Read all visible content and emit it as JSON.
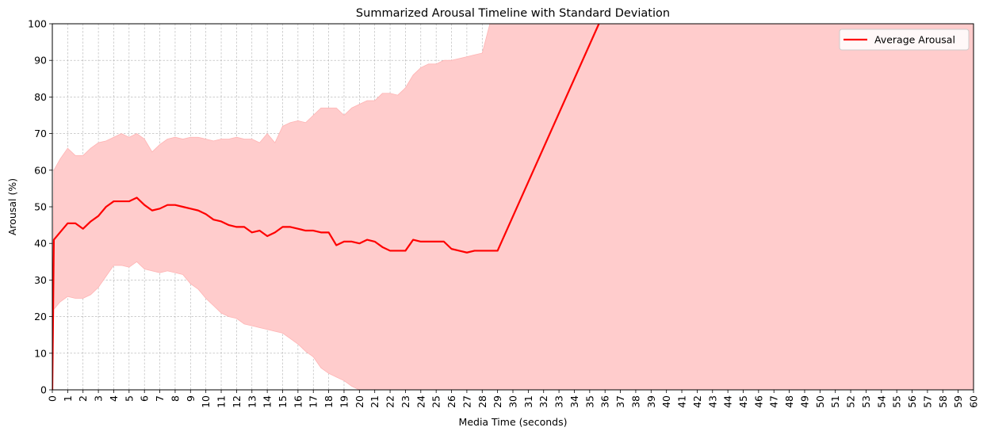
{
  "chart_data": {
    "type": "line",
    "title": "Summarized Arousal Timeline with Standard Deviation",
    "xlabel": "Media Time (seconds)",
    "ylabel": "Arousal (%)",
    "xlim": [
      0,
      60
    ],
    "ylim": [
      0,
      100
    ],
    "x_ticks": [
      0,
      1,
      2,
      3,
      4,
      5,
      6,
      7,
      8,
      9,
      10,
      11,
      12,
      13,
      14,
      15,
      16,
      17,
      18,
      19,
      20,
      21,
      22,
      23,
      24,
      25,
      26,
      27,
      28,
      29,
      30,
      31,
      32,
      33,
      34,
      35,
      36,
      37,
      38,
      39,
      40,
      41,
      42,
      43,
      44,
      45,
      46,
      47,
      48,
      49,
      50,
      51,
      52,
      53,
      54,
      55,
      56,
      57,
      58,
      59,
      60
    ],
    "y_ticks": [
      0,
      10,
      20,
      30,
      40,
      50,
      60,
      70,
      80,
      90,
      100
    ],
    "grid": true,
    "legend_position": "top-right",
    "colors": {
      "line": "#ff0000",
      "band": "#ffcccc",
      "band_edge": "#ffb3b3"
    },
    "series": [
      {
        "name": "Average Arousal",
        "x": [
          0,
          0.1,
          0.5,
          1,
          1.5,
          2,
          2.5,
          3,
          3.5,
          4,
          4.5,
          5,
          5.5,
          6,
          6.5,
          7,
          7.5,
          8,
          8.5,
          9,
          9.5,
          10,
          10.5,
          11,
          11.5,
          12,
          12.5,
          13,
          13.5,
          14,
          14.5,
          15,
          15.5,
          16,
          16.5,
          17,
          17.5,
          18,
          18.5,
          19,
          19.5,
          20,
          20.5,
          21,
          21.5,
          22,
          22.5,
          23,
          23.5,
          24,
          24.5,
          25,
          25.5,
          26,
          26.5,
          27,
          27.5,
          28,
          28.5,
          29,
          35.6
        ],
        "y": [
          0,
          41,
          43,
          45.5,
          45.5,
          44,
          46,
          47.5,
          50,
          51.5,
          51.5,
          51.5,
          52.5,
          50.5,
          49,
          49.5,
          50.5,
          50.5,
          50,
          49.5,
          49,
          48,
          46.5,
          46,
          45,
          44.5,
          44.5,
          43,
          43.5,
          42,
          43,
          44.5,
          44.5,
          44,
          43.5,
          43.5,
          43,
          43,
          39.5,
          40.5,
          40.5,
          40,
          41,
          40.5,
          39,
          38,
          38,
          38,
          41,
          40.5,
          40.5,
          40.5,
          40.5,
          38.5,
          38,
          37.5,
          38,
          38,
          38,
          38,
          100
        ]
      }
    ],
    "std_band": {
      "name": "Standard Deviation",
      "x": [
        0,
        0.1,
        0.5,
        1,
        1.5,
        2,
        2.5,
        3,
        3.5,
        4,
        4.5,
        5,
        5.5,
        6,
        6.5,
        7,
        7.5,
        8,
        8.5,
        9,
        9.5,
        10,
        10.5,
        11,
        11.5,
        12,
        12.5,
        13,
        13.5,
        14,
        14.5,
        15,
        15.5,
        16,
        16.5,
        17,
        17.5,
        18,
        18.5,
        19,
        19.5,
        20,
        20.5,
        21,
        21.5,
        22,
        22.5,
        23,
        23.5,
        24,
        24.5,
        25,
        25.5,
        26,
        26.5,
        27,
        27.5,
        28,
        28.5,
        29,
        29.5,
        60
      ],
      "upper": [
        0,
        60,
        63,
        66,
        64,
        64,
        66,
        67.5,
        68,
        69,
        70,
        69,
        70,
        68.5,
        65,
        67,
        68.5,
        69,
        68.5,
        69,
        69,
        68.5,
        68,
        68.5,
        68.5,
        69,
        68.5,
        68.5,
        67.5,
        70,
        67.5,
        72,
        73,
        73.5,
        73,
        75,
        77,
        77,
        77,
        75,
        77,
        78,
        79,
        79,
        81,
        81,
        80.5,
        82.5,
        86,
        88,
        89,
        89,
        90,
        90,
        90.5,
        91,
        91.5,
        92,
        100,
        100,
        100,
        100
      ],
      "lower": [
        0,
        22,
        24,
        25.5,
        25,
        25,
        26,
        28,
        31,
        34,
        34,
        33.5,
        35,
        33,
        32.5,
        32,
        32.5,
        32,
        31.5,
        29,
        27.5,
        25,
        23,
        21,
        20,
        19.5,
        18,
        17.5,
        17,
        16.5,
        16,
        15.5,
        14,
        12.5,
        10.5,
        9,
        6,
        4.5,
        3.5,
        2.5,
        1,
        0,
        0,
        0,
        0,
        0,
        0,
        0,
        0,
        0,
        0,
        0,
        0,
        0,
        0,
        0,
        0,
        0,
        0,
        0,
        0,
        0
      ]
    }
  }
}
